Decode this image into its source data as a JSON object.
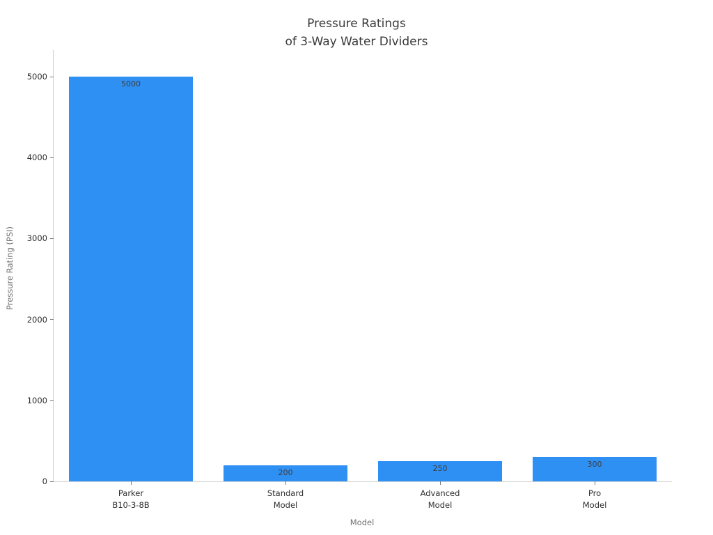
{
  "chart_data": {
    "type": "bar",
    "title_lines": [
      "Pressure Ratings",
      "of 3-Way Water Dividers"
    ],
    "title": "Pressure Ratings\nof 3-Way Water Dividers",
    "categories": [
      [
        "Parker",
        "B10-3-8B"
      ],
      [
        "Standard",
        "Model"
      ],
      [
        "Advanced",
        "Model"
      ],
      [
        "Pro",
        "Model"
      ]
    ],
    "values": [
      5000,
      200,
      250,
      300
    ],
    "bar_labels": [
      "5000",
      "200",
      "250",
      "300"
    ],
    "xlabel": "Model",
    "ylabel": "Pressure Rating (PSI)",
    "ylim": [
      0,
      5000
    ],
    "yticks": [
      0,
      1000,
      2000,
      3000,
      4000,
      5000
    ],
    "ytick_labels": [
      "0",
      "1000",
      "2000",
      "3000",
      "4000",
      "5000"
    ],
    "grid": false,
    "legend_position": "none",
    "bar_color": "#2f90f4",
    "title_color": "#3a3a3a",
    "axis_label_color": "#707070",
    "tick_label_color": "#2e2e2e",
    "spine_color": "#cfcfcf"
  }
}
